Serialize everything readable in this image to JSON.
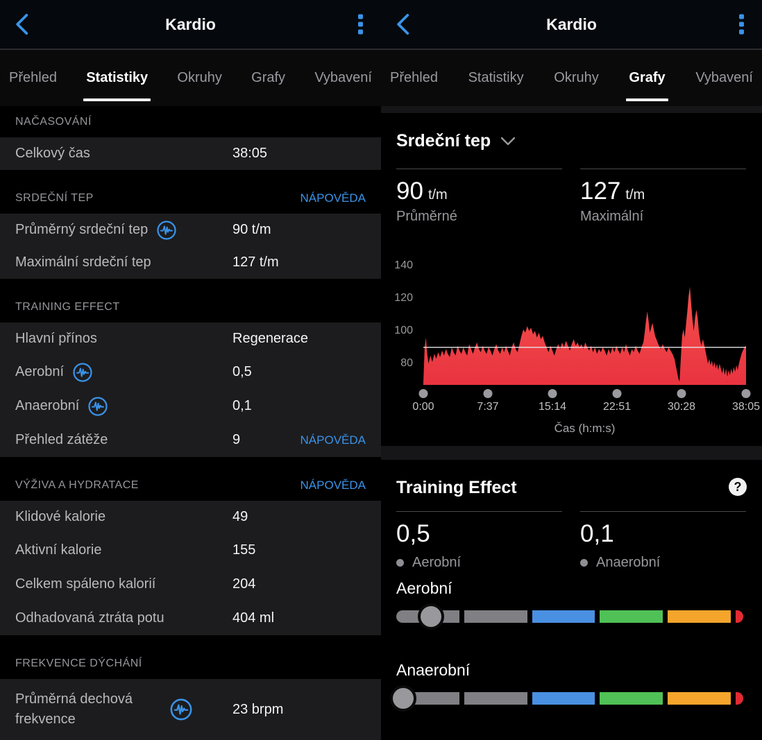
{
  "app": {
    "title": "Kardio"
  },
  "tabs": [
    "Přehled",
    "Statistiky",
    "Okruhy",
    "Grafy",
    "Vybavení"
  ],
  "colors": {
    "accent": "#3a93e8",
    "chart_red_top": "#f4514d",
    "chart_red_bottom": "#e93340",
    "avg_line": "#e6e6e6",
    "gauge_gray": "#7f7f84",
    "gauge_blue": "#4a90e2",
    "gauge_green": "#50c156",
    "gauge_orange": "#f5a52c",
    "gauge_red": "#e22a33"
  },
  "left_screen": {
    "active_tab": "Statistiky",
    "sections": [
      {
        "title": "NAČASOVÁNÍ",
        "rows": [
          {
            "label": "Celkový čas",
            "value": "38:05"
          }
        ]
      },
      {
        "title": "SRDEČNÍ TEP",
        "help": "NÁPOVĚDA",
        "rows": [
          {
            "label": "Průměrný srdeční tep",
            "value": "90 t/m"
          },
          {
            "label": "Maximální srdeční tep",
            "value": "127 t/m"
          }
        ]
      },
      {
        "title": "TRAINING EFFECT",
        "rows": [
          {
            "label": "Hlavní přínos",
            "value": "Regenerace"
          },
          {
            "label": "Aerobní",
            "value": "0,5"
          },
          {
            "label": "Anaerobní",
            "value": "0,1"
          },
          {
            "label": "Přehled zátěže",
            "value": "9",
            "help": "NÁPOVĚDA"
          }
        ]
      },
      {
        "title": "VÝŽIVA A HYDRATACE",
        "help": "NÁPOVĚDA",
        "rows": [
          {
            "label": "Klidové kalorie",
            "value": "49"
          },
          {
            "label": "Aktivní kalorie",
            "value": "155"
          },
          {
            "label": "Celkem spáleno kalorií",
            "value": "204"
          },
          {
            "label": "Odhadovaná ztráta potu",
            "value": "404 ml"
          }
        ]
      },
      {
        "title": "FREKVENCE DÝCHÁNÍ",
        "rows": [
          {
            "label": "Průměrná dechová frekvence",
            "value": "23 brpm"
          }
        ]
      }
    ]
  },
  "right_screen": {
    "active_tab": "Grafy",
    "chart_card": {
      "title": "Srdeční tep",
      "stats": [
        {
          "value": "90",
          "unit": "t/m",
          "label": "Průměrné"
        },
        {
          "value": "127",
          "unit": "t/m",
          "label": "Maximální"
        }
      ]
    },
    "te_card": {
      "title": "Training Effect",
      "help_glyph": "?",
      "stats": [
        {
          "value": "0,5",
          "label": "Aerobní"
        },
        {
          "value": "0,1",
          "label": "Anaerobní"
        }
      ],
      "gauges": [
        {
          "label": "Aerobní",
          "value": 0.5,
          "max": 5
        },
        {
          "label": "Anaerobní",
          "value": 0.1,
          "max": 5
        }
      ]
    }
  },
  "chart_data": {
    "type": "area",
    "title": "Srdeční tep",
    "xlabel": "Čas (h:m:s)",
    "ylabel": "t/m",
    "xticks": [
      "0:00",
      "7:37",
      "15:14",
      "22:51",
      "30:28",
      "38:05"
    ],
    "yticks": [
      140,
      120,
      100,
      80
    ],
    "ylim": [
      67,
      154
    ],
    "grid": false,
    "legend": false,
    "avg_line": 90,
    "avg_value": 90,
    "max_value": 127,
    "series": [
      {
        "name": "Srdeční tep (t/m)",
        "points": [
          [
            0.0,
            68
          ],
          [
            0.004,
            90
          ],
          [
            0.008,
            96
          ],
          [
            0.012,
            86
          ],
          [
            0.016,
            80
          ],
          [
            0.022,
            85
          ],
          [
            0.028,
            81
          ],
          [
            0.034,
            86
          ],
          [
            0.04,
            83
          ],
          [
            0.046,
            87
          ],
          [
            0.052,
            84
          ],
          [
            0.058,
            88
          ],
          [
            0.064,
            85
          ],
          [
            0.07,
            89
          ],
          [
            0.076,
            86
          ],
          [
            0.082,
            84
          ],
          [
            0.088,
            90
          ],
          [
            0.094,
            87
          ],
          [
            0.1,
            85
          ],
          [
            0.106,
            91
          ],
          [
            0.112,
            88
          ],
          [
            0.118,
            86
          ],
          [
            0.124,
            90
          ],
          [
            0.13,
            87
          ],
          [
            0.136,
            85
          ],
          [
            0.142,
            92
          ],
          [
            0.148,
            89
          ],
          [
            0.154,
            86
          ],
          [
            0.16,
            90
          ],
          [
            0.166,
            93
          ],
          [
            0.172,
            89
          ],
          [
            0.178,
            87
          ],
          [
            0.184,
            91
          ],
          [
            0.19,
            88
          ],
          [
            0.196,
            86
          ],
          [
            0.202,
            90
          ],
          [
            0.208,
            88
          ],
          [
            0.214,
            85
          ],
          [
            0.22,
            89
          ],
          [
            0.226,
            92
          ],
          [
            0.232,
            88
          ],
          [
            0.238,
            86
          ],
          [
            0.244,
            90
          ],
          [
            0.25,
            87
          ],
          [
            0.256,
            91
          ],
          [
            0.262,
            88
          ],
          [
            0.268,
            85
          ],
          [
            0.274,
            90
          ],
          [
            0.28,
            93
          ],
          [
            0.286,
            89
          ],
          [
            0.292,
            87
          ],
          [
            0.298,
            92
          ],
          [
            0.304,
            97
          ],
          [
            0.31,
            101
          ],
          [
            0.316,
            99
          ],
          [
            0.322,
            103
          ],
          [
            0.328,
            100
          ],
          [
            0.334,
            102
          ],
          [
            0.34,
            98
          ],
          [
            0.346,
            100
          ],
          [
            0.352,
            96
          ],
          [
            0.358,
            99
          ],
          [
            0.364,
            95
          ],
          [
            0.37,
            97
          ],
          [
            0.376,
            93
          ],
          [
            0.382,
            90
          ],
          [
            0.388,
            87
          ],
          [
            0.394,
            91
          ],
          [
            0.4,
            88
          ],
          [
            0.406,
            85
          ],
          [
            0.412,
            89
          ],
          [
            0.418,
            92
          ],
          [
            0.424,
            89
          ],
          [
            0.43,
            93
          ],
          [
            0.436,
            90
          ],
          [
            0.442,
            94
          ],
          [
            0.448,
            91
          ],
          [
            0.454,
            88
          ],
          [
            0.46,
            92
          ],
          [
            0.466,
            95
          ],
          [
            0.472,
            91
          ],
          [
            0.478,
            93
          ],
          [
            0.484,
            90
          ],
          [
            0.49,
            92
          ],
          [
            0.496,
            89
          ],
          [
            0.502,
            93
          ],
          [
            0.508,
            90
          ],
          [
            0.514,
            88
          ],
          [
            0.52,
            91
          ],
          [
            0.526,
            87
          ],
          [
            0.532,
            90
          ],
          [
            0.538,
            86
          ],
          [
            0.544,
            89
          ],
          [
            0.55,
            87
          ],
          [
            0.556,
            90
          ],
          [
            0.562,
            88
          ],
          [
            0.568,
            85
          ],
          [
            0.574,
            89
          ],
          [
            0.58,
            86
          ],
          [
            0.586,
            90
          ],
          [
            0.592,
            87
          ],
          [
            0.598,
            91
          ],
          [
            0.604,
            88
          ],
          [
            0.61,
            86
          ],
          [
            0.616,
            90
          ],
          [
            0.622,
            87
          ],
          [
            0.628,
            92
          ],
          [
            0.634,
            88
          ],
          [
            0.64,
            85
          ],
          [
            0.646,
            89
          ],
          [
            0.652,
            87
          ],
          [
            0.658,
            91
          ],
          [
            0.664,
            88
          ],
          [
            0.67,
            86
          ],
          [
            0.676,
            90
          ],
          [
            0.682,
            93
          ],
          [
            0.686,
            99
          ],
          [
            0.69,
            106
          ],
          [
            0.694,
            112
          ],
          [
            0.698,
            106
          ],
          [
            0.702,
            99
          ],
          [
            0.706,
            102
          ],
          [
            0.71,
            105
          ],
          [
            0.714,
            101
          ],
          [
            0.718,
            97
          ],
          [
            0.724,
            94
          ],
          [
            0.73,
            91
          ],
          [
            0.736,
            89
          ],
          [
            0.742,
            92
          ],
          [
            0.748,
            89
          ],
          [
            0.754,
            87
          ],
          [
            0.76,
            90
          ],
          [
            0.766,
            88
          ],
          [
            0.772,
            86
          ],
          [
            0.778,
            83
          ],
          [
            0.784,
            77
          ],
          [
            0.79,
            71
          ],
          [
            0.794,
            69
          ],
          [
            0.798,
            84
          ],
          [
            0.802,
            97
          ],
          [
            0.806,
            101
          ],
          [
            0.81,
            96
          ],
          [
            0.814,
            104
          ],
          [
            0.818,
            112
          ],
          [
            0.822,
            121
          ],
          [
            0.826,
            127
          ],
          [
            0.83,
            117
          ],
          [
            0.834,
            107
          ],
          [
            0.838,
            100
          ],
          [
            0.842,
            108
          ],
          [
            0.846,
            113
          ],
          [
            0.85,
            108
          ],
          [
            0.854,
            99
          ],
          [
            0.858,
            94
          ],
          [
            0.862,
            91
          ],
          [
            0.866,
            95
          ],
          [
            0.87,
            92
          ],
          [
            0.874,
            88
          ],
          [
            0.878,
            84
          ],
          [
            0.882,
            80
          ],
          [
            0.886,
            83
          ],
          [
            0.89,
            79
          ],
          [
            0.894,
            82
          ],
          [
            0.898,
            78
          ],
          [
            0.902,
            81
          ],
          [
            0.906,
            77
          ],
          [
            0.91,
            80
          ],
          [
            0.914,
            76
          ],
          [
            0.918,
            80
          ],
          [
            0.922,
            77
          ],
          [
            0.926,
            74
          ],
          [
            0.93,
            78
          ],
          [
            0.934,
            73
          ],
          [
            0.938,
            77
          ],
          [
            0.942,
            72
          ],
          [
            0.946,
            76
          ],
          [
            0.95,
            73
          ],
          [
            0.954,
            77
          ],
          [
            0.958,
            74
          ],
          [
            0.962,
            78
          ],
          [
            0.966,
            75
          ],
          [
            0.97,
            79
          ],
          [
            0.974,
            76
          ],
          [
            0.978,
            80
          ],
          [
            0.982,
            83
          ],
          [
            0.986,
            86
          ],
          [
            0.99,
            88
          ],
          [
            0.995,
            90
          ],
          [
            1.0,
            91
          ]
        ]
      }
    ]
  }
}
